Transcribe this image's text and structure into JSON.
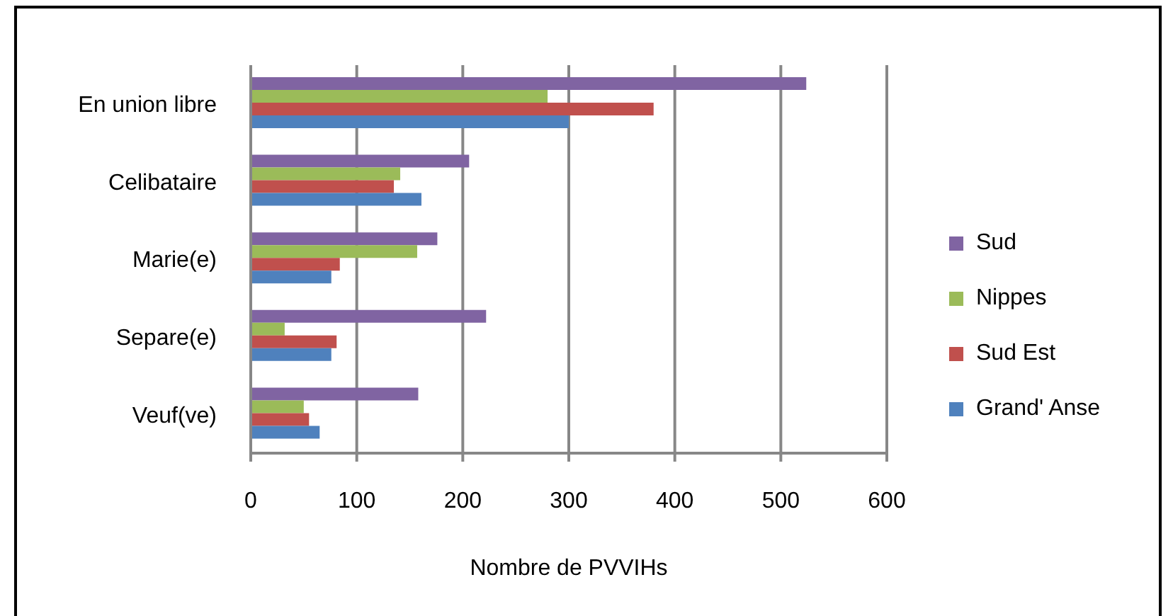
{
  "chart_data": {
    "type": "bar",
    "orientation": "horizontal",
    "xlabel": "Nombre de PVVIHs",
    "categories": [
      "En union libre",
      "Celibataire",
      "Marie(e)",
      "Separe(e)",
      "Veuf(ve)"
    ],
    "series": [
      {
        "name": "Sud",
        "color": "#8064a2",
        "values": [
          524,
          206,
          176,
          222,
          158
        ]
      },
      {
        "name": "Nippes",
        "color": "#9bbb59",
        "values": [
          280,
          141,
          157,
          32,
          50
        ]
      },
      {
        "name": "Sud Est",
        "color": "#c0504d",
        "values": [
          380,
          135,
          84,
          81,
          55
        ]
      },
      {
        "name": "Grand' Anse",
        "color": "#4f81bd",
        "values": [
          300,
          161,
          76,
          76,
          65
        ]
      }
    ],
    "xlim": [
      0,
      600
    ],
    "xticks": [
      0,
      100,
      200,
      300,
      400,
      500,
      600
    ],
    "grid": "x",
    "legend": "right"
  }
}
